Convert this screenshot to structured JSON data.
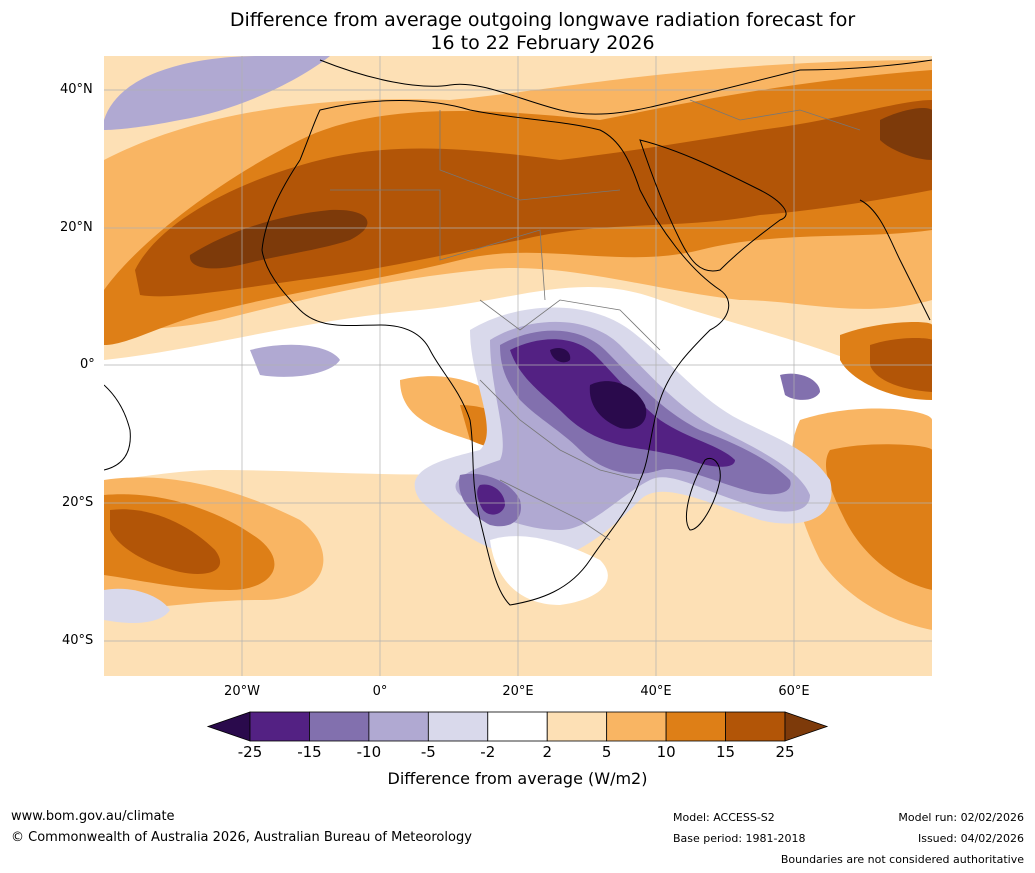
{
  "title": {
    "line1": "Difference from average outgoing longwave radiation forecast for",
    "line2": "16 to 22 February 2026"
  },
  "map": {
    "lat_labels": [
      "40°N",
      "20°N",
      "0°",
      "20°S",
      "40°S"
    ],
    "lon_labels": [
      "20°W",
      "0°",
      "20°E",
      "40°E",
      "60°E"
    ],
    "extent": {
      "lon_min": -40,
      "lon_max": 80,
      "lat_min": -45,
      "lat_max": 45
    }
  },
  "colorbar": {
    "ticks": [
      "-25",
      "-15",
      "-10",
      "-5",
      "-2",
      "2",
      "5",
      "10",
      "15",
      "25"
    ],
    "colors": [
      "#2a0a4c",
      "#532183",
      "#8270ae",
      "#b0a9d2",
      "#d9d9eb",
      "#ffffff",
      "#fde0b5",
      "#f9b563",
      "#de7f17",
      "#b25507",
      "#7d3a0a"
    ],
    "label": "Difference from average (W/m2)"
  },
  "footer": {
    "website": "www.bom.gov.au/climate",
    "copyright": "© Commonwealth of Australia 2026, Australian Bureau of Meteorology",
    "model": "Model: ACCESS-S2",
    "base_period": "Base period: 1981-2018",
    "model_run": "Model run: 02/02/2026",
    "issued": "Issued: 04/02/2026",
    "disclaimer": "Boundaries are not considered authoritative"
  }
}
